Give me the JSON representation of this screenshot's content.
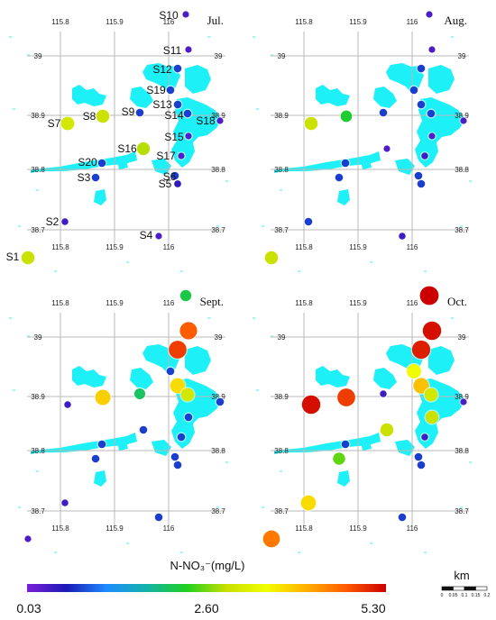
{
  "panels": [
    {
      "month": "Jul.",
      "lon_ticks": [
        "115.8",
        "115.9",
        "116"
      ],
      "lat_ticks": [
        "39",
        "38.9",
        "38.8",
        "38.7"
      ],
      "stations": [
        {
          "id": "S1",
          "value": 3.0
        },
        {
          "id": "S2",
          "value": 0.4
        },
        {
          "id": "S3",
          "value": 0.8
        },
        {
          "id": "S4",
          "value": 0.3
        },
        {
          "id": "S5",
          "value": 0.5
        },
        {
          "id": "S6",
          "value": 0.8
        },
        {
          "id": "S7",
          "value": 3.1
        },
        {
          "id": "S8",
          "value": 3.0
        },
        {
          "id": "S9",
          "value": 0.8
        },
        {
          "id": "S10",
          "value": 0.3
        },
        {
          "id": "S11",
          "value": 0.3
        },
        {
          "id": "S12",
          "value": 0.8
        },
        {
          "id": "S13",
          "value": 0.8
        },
        {
          "id": "S14",
          "value": 0.8
        },
        {
          "id": "S15",
          "value": 0.3
        },
        {
          "id": "S16",
          "value": 2.9
        },
        {
          "id": "S17",
          "value": 0.3
        },
        {
          "id": "S18",
          "value": 0.3
        },
        {
          "id": "S19",
          "value": 0.8
        },
        {
          "id": "S20",
          "value": 0.8
        }
      ]
    },
    {
      "month": "Aug.",
      "lon_ticks": [
        "115.8",
        "115.9",
        "116"
      ],
      "lat_ticks": [
        "39",
        "38.9",
        "38.8",
        "38.7"
      ],
      "stations": [
        {
          "id": "S1",
          "value": 3.0
        },
        {
          "id": "S2",
          "value": 0.8
        },
        {
          "id": "S3",
          "value": 0.8
        },
        {
          "id": "S4",
          "value": 0.4
        },
        {
          "id": "S5",
          "value": 0.8
        },
        {
          "id": "S6",
          "value": 0.8
        },
        {
          "id": "S7",
          "value": 3.0
        },
        {
          "id": "S8",
          "value": 2.3
        },
        {
          "id": "S9",
          "value": 0.8
        },
        {
          "id": "S10",
          "value": 0.3
        },
        {
          "id": "S11",
          "value": 0.3
        },
        {
          "id": "S12",
          "value": 0.8
        },
        {
          "id": "S13",
          "value": 0.8
        },
        {
          "id": "S14",
          "value": 0.8
        },
        {
          "id": "S15",
          "value": 0.3
        },
        {
          "id": "S16",
          "value": 0.3
        },
        {
          "id": "S17",
          "value": 0.4
        },
        {
          "id": "S18",
          "value": 0.3
        },
        {
          "id": "S19",
          "value": 0.8
        },
        {
          "id": "S20",
          "value": 0.8
        }
      ]
    },
    {
      "month": "Sept.",
      "lon_ticks": [
        "115.8",
        "115.9",
        "116"
      ],
      "lat_ticks": [
        "39",
        "38.9",
        "38.8",
        "38.7"
      ],
      "stations": [
        {
          "id": "S1",
          "value": 0.3
        },
        {
          "id": "S2",
          "value": 0.4
        },
        {
          "id": "S3",
          "value": 0.8
        },
        {
          "id": "S4",
          "value": 0.8
        },
        {
          "id": "S5",
          "value": 0.8
        },
        {
          "id": "S6",
          "value": 0.8
        },
        {
          "id": "S7",
          "value": 0.4
        },
        {
          "id": "S8",
          "value": 3.9
        },
        {
          "id": "S9",
          "value": 2.1
        },
        {
          "id": "S10",
          "value": 2.2
        },
        {
          "id": "S11",
          "value": 4.7
        },
        {
          "id": "S12",
          "value": 4.9
        },
        {
          "id": "S13",
          "value": 3.8
        },
        {
          "id": "S14",
          "value": 3.1
        },
        {
          "id": "S15",
          "value": 0.8
        },
        {
          "id": "S16",
          "value": 0.8
        },
        {
          "id": "S17",
          "value": 0.8
        },
        {
          "id": "S18",
          "value": 0.8
        },
        {
          "id": "S19",
          "value": 0.8
        },
        {
          "id": "S20",
          "value": 0.8
        }
      ]
    },
    {
      "month": "Oct.",
      "lon_ticks": [
        "115.8",
        "115.9",
        "116"
      ],
      "lat_ticks": [
        "39",
        "38.9",
        "38.8",
        "38.7"
      ],
      "stations": [
        {
          "id": "S1",
          "value": 4.5
        },
        {
          "id": "S2",
          "value": 3.8
        },
        {
          "id": "S3",
          "value": 2.6
        },
        {
          "id": "S4",
          "value": 0.8
        },
        {
          "id": "S5",
          "value": 0.8
        },
        {
          "id": "S6",
          "value": 0.8
        },
        {
          "id": "S7",
          "value": 5.2
        },
        {
          "id": "S8",
          "value": 4.9
        },
        {
          "id": "S9",
          "value": 0.4
        },
        {
          "id": "S10",
          "value": 5.3
        },
        {
          "id": "S11",
          "value": 5.2
        },
        {
          "id": "S12",
          "value": 5.1
        },
        {
          "id": "S13",
          "value": 4.0
        },
        {
          "id": "S14",
          "value": 3.1
        },
        {
          "id": "S15",
          "value": 3.0
        },
        {
          "id": "S16",
          "value": 3.0
        },
        {
          "id": "S17",
          "value": 0.4
        },
        {
          "id": "S18",
          "value": 0.3
        },
        {
          "id": "S19",
          "value": 3.5
        },
        {
          "id": "S20",
          "value": 0.8
        }
      ]
    }
  ],
  "legend": {
    "title": "N-NO₃⁻(mg/L)",
    "min_label": "0.03",
    "mid_label": "2.60",
    "max_label": "5.30",
    "min": 0.03,
    "max": 5.3,
    "colors": [
      "#7a1fd6",
      "#1a1ab8",
      "#1f8cff",
      "#12b3a8",
      "#1fd01f",
      "#c8e000",
      "#f2ff00",
      "#ffb000",
      "#ff5a00",
      "#cc0000"
    ]
  },
  "scale_bar": {
    "unit": "km",
    "ticks": [
      "0",
      "0.05",
      "0.1",
      "0.15",
      "0.2"
    ]
  },
  "colors": {
    "water": "#1ef0f8",
    "grid": "#b8b8b8"
  }
}
